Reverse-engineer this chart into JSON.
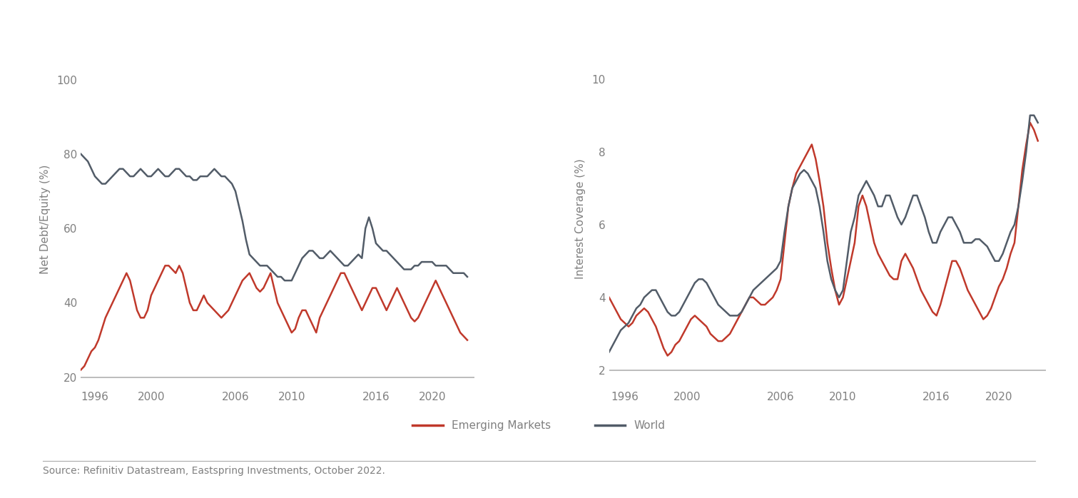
{
  "left_chart": {
    "ylabel": "Net Debt/Equity (%)",
    "yticks": [
      20,
      40,
      60,
      80,
      100
    ],
    "ylim": [
      17,
      108
    ],
    "xticks": [
      1996,
      2000,
      2006,
      2010,
      2016,
      2020
    ],
    "xlim": [
      1995.0,
      2023.0
    ],
    "em": {
      "x": [
        1995.0,
        1995.25,
        1995.5,
        1995.75,
        1996.0,
        1996.25,
        1996.5,
        1996.75,
        1997.0,
        1997.25,
        1997.5,
        1997.75,
        1998.0,
        1998.25,
        1998.5,
        1998.75,
        1999.0,
        1999.25,
        1999.5,
        1999.75,
        2000.0,
        2000.25,
        2000.5,
        2000.75,
        2001.0,
        2001.25,
        2001.5,
        2001.75,
        2002.0,
        2002.25,
        2002.5,
        2002.75,
        2003.0,
        2003.25,
        2003.5,
        2003.75,
        2004.0,
        2004.25,
        2004.5,
        2004.75,
        2005.0,
        2005.25,
        2005.5,
        2005.75,
        2006.0,
        2006.25,
        2006.5,
        2006.75,
        2007.0,
        2007.25,
        2007.5,
        2007.75,
        2008.0,
        2008.25,
        2008.5,
        2008.75,
        2009.0,
        2009.25,
        2009.5,
        2009.75,
        2010.0,
        2010.25,
        2010.5,
        2010.75,
        2011.0,
        2011.25,
        2011.5,
        2011.75,
        2012.0,
        2012.25,
        2012.5,
        2012.75,
        2013.0,
        2013.25,
        2013.5,
        2013.75,
        2014.0,
        2014.25,
        2014.5,
        2014.75,
        2015.0,
        2015.25,
        2015.5,
        2015.75,
        2016.0,
        2016.25,
        2016.5,
        2016.75,
        2017.0,
        2017.25,
        2017.5,
        2017.75,
        2018.0,
        2018.25,
        2018.5,
        2018.75,
        2019.0,
        2019.25,
        2019.5,
        2019.75,
        2020.0,
        2020.25,
        2020.5,
        2020.75,
        2021.0,
        2021.25,
        2021.5,
        2021.75,
        2022.0,
        2022.25,
        2022.5
      ],
      "y": [
        22,
        23,
        25,
        27,
        28,
        30,
        33,
        36,
        38,
        40,
        42,
        44,
        46,
        48,
        46,
        42,
        38,
        36,
        36,
        38,
        42,
        44,
        46,
        48,
        50,
        50,
        49,
        48,
        50,
        48,
        44,
        40,
        38,
        38,
        40,
        42,
        40,
        39,
        38,
        37,
        36,
        37,
        38,
        40,
        42,
        44,
        46,
        47,
        48,
        46,
        44,
        43,
        44,
        46,
        48,
        44,
        40,
        38,
        36,
        34,
        32,
        33,
        36,
        38,
        38,
        36,
        34,
        32,
        36,
        38,
        40,
        42,
        44,
        46,
        48,
        48,
        46,
        44,
        42,
        40,
        38,
        40,
        42,
        44,
        44,
        42,
        40,
        38,
        40,
        42,
        44,
        42,
        40,
        38,
        36,
        35,
        36,
        38,
        40,
        42,
        44,
        46,
        44,
        42,
        40,
        38,
        36,
        34,
        32,
        31,
        30
      ]
    },
    "world": {
      "x": [
        1995.0,
        1995.25,
        1995.5,
        1995.75,
        1996.0,
        1996.25,
        1996.5,
        1996.75,
        1997.0,
        1997.25,
        1997.5,
        1997.75,
        1998.0,
        1998.25,
        1998.5,
        1998.75,
        1999.0,
        1999.25,
        1999.5,
        1999.75,
        2000.0,
        2000.25,
        2000.5,
        2000.75,
        2001.0,
        2001.25,
        2001.5,
        2001.75,
        2002.0,
        2002.25,
        2002.5,
        2002.75,
        2003.0,
        2003.25,
        2003.5,
        2003.75,
        2004.0,
        2004.25,
        2004.5,
        2004.75,
        2005.0,
        2005.25,
        2005.5,
        2005.75,
        2006.0,
        2006.25,
        2006.5,
        2006.75,
        2007.0,
        2007.25,
        2007.5,
        2007.75,
        2008.0,
        2008.25,
        2008.5,
        2008.75,
        2009.0,
        2009.25,
        2009.5,
        2009.75,
        2010.0,
        2010.25,
        2010.5,
        2010.75,
        2011.0,
        2011.25,
        2011.5,
        2011.75,
        2012.0,
        2012.25,
        2012.5,
        2012.75,
        2013.0,
        2013.25,
        2013.5,
        2013.75,
        2014.0,
        2014.25,
        2014.5,
        2014.75,
        2015.0,
        2015.25,
        2015.5,
        2015.75,
        2016.0,
        2016.25,
        2016.5,
        2016.75,
        2017.0,
        2017.25,
        2017.5,
        2017.75,
        2018.0,
        2018.25,
        2018.5,
        2018.75,
        2019.0,
        2019.25,
        2019.5,
        2019.75,
        2020.0,
        2020.25,
        2020.5,
        2020.75,
        2021.0,
        2021.25,
        2021.5,
        2021.75,
        2022.0,
        2022.25,
        2022.5
      ],
      "y": [
        80,
        79,
        78,
        76,
        74,
        73,
        72,
        72,
        73,
        74,
        75,
        76,
        76,
        75,
        74,
        74,
        75,
        76,
        75,
        74,
        74,
        75,
        76,
        75,
        74,
        74,
        75,
        76,
        76,
        75,
        74,
        74,
        73,
        73,
        74,
        74,
        74,
        75,
        76,
        75,
        74,
        74,
        73,
        72,
        70,
        66,
        62,
        57,
        53,
        52,
        51,
        50,
        50,
        50,
        49,
        48,
        47,
        47,
        46,
        46,
        46,
        48,
        50,
        52,
        53,
        54,
        54,
        53,
        52,
        52,
        53,
        54,
        53,
        52,
        51,
        50,
        50,
        51,
        52,
        53,
        52,
        60,
        63,
        60,
        56,
        55,
        54,
        54,
        53,
        52,
        51,
        50,
        49,
        49,
        49,
        50,
        50,
        51,
        51,
        51,
        51,
        50,
        50,
        50,
        50,
        49,
        48,
        48,
        48,
        48,
        47
      ]
    }
  },
  "right_chart": {
    "ylabel": "Interest Coverage (%)",
    "yticks": [
      2,
      4,
      6,
      8,
      10
    ],
    "ylim": [
      1.5,
      10.8
    ],
    "xticks": [
      1996,
      2000,
      2006,
      2010,
      2016,
      2020
    ],
    "xlim": [
      1995.0,
      2023.0
    ],
    "em": {
      "x": [
        1995.0,
        1995.25,
        1995.5,
        1995.75,
        1996.0,
        1996.25,
        1996.5,
        1996.75,
        1997.0,
        1997.25,
        1997.5,
        1997.75,
        1998.0,
        1998.25,
        1998.5,
        1998.75,
        1999.0,
        1999.25,
        1999.5,
        1999.75,
        2000.0,
        2000.25,
        2000.5,
        2000.75,
        2001.0,
        2001.25,
        2001.5,
        2001.75,
        2002.0,
        2002.25,
        2002.5,
        2002.75,
        2003.0,
        2003.25,
        2003.5,
        2003.75,
        2004.0,
        2004.25,
        2004.5,
        2004.75,
        2005.0,
        2005.25,
        2005.5,
        2005.75,
        2006.0,
        2006.25,
        2006.5,
        2006.75,
        2007.0,
        2007.25,
        2007.5,
        2007.75,
        2008.0,
        2008.25,
        2008.5,
        2008.75,
        2009.0,
        2009.25,
        2009.5,
        2009.75,
        2010.0,
        2010.25,
        2010.5,
        2010.75,
        2011.0,
        2011.25,
        2011.5,
        2011.75,
        2012.0,
        2012.25,
        2012.5,
        2012.75,
        2013.0,
        2013.25,
        2013.5,
        2013.75,
        2014.0,
        2014.25,
        2014.5,
        2014.75,
        2015.0,
        2015.25,
        2015.5,
        2015.75,
        2016.0,
        2016.25,
        2016.5,
        2016.75,
        2017.0,
        2017.25,
        2017.5,
        2017.75,
        2018.0,
        2018.25,
        2018.5,
        2018.75,
        2019.0,
        2019.25,
        2019.5,
        2019.75,
        2020.0,
        2020.25,
        2020.5,
        2020.75,
        2021.0,
        2021.25,
        2021.5,
        2021.75,
        2022.0,
        2022.25,
        2022.5
      ],
      "y": [
        4.0,
        3.8,
        3.6,
        3.4,
        3.3,
        3.2,
        3.3,
        3.5,
        3.6,
        3.7,
        3.6,
        3.4,
        3.2,
        2.9,
        2.6,
        2.4,
        2.5,
        2.7,
        2.8,
        3.0,
        3.2,
        3.4,
        3.5,
        3.4,
        3.3,
        3.2,
        3.0,
        2.9,
        2.8,
        2.8,
        2.9,
        3.0,
        3.2,
        3.4,
        3.6,
        3.8,
        4.0,
        4.0,
        3.9,
        3.8,
        3.8,
        3.9,
        4.0,
        4.2,
        4.5,
        5.5,
        6.5,
        7.0,
        7.4,
        7.6,
        7.8,
        8.0,
        8.2,
        7.8,
        7.2,
        6.5,
        5.5,
        4.8,
        4.2,
        3.8,
        4.0,
        4.5,
        5.0,
        5.5,
        6.5,
        6.8,
        6.5,
        6.0,
        5.5,
        5.2,
        5.0,
        4.8,
        4.6,
        4.5,
        4.5,
        5.0,
        5.2,
        5.0,
        4.8,
        4.5,
        4.2,
        4.0,
        3.8,
        3.6,
        3.5,
        3.8,
        4.2,
        4.6,
        5.0,
        5.0,
        4.8,
        4.5,
        4.2,
        4.0,
        3.8,
        3.6,
        3.4,
        3.5,
        3.7,
        4.0,
        4.3,
        4.5,
        4.8,
        5.2,
        5.5,
        6.5,
        7.5,
        8.2,
        8.8,
        8.6,
        8.3
      ]
    },
    "world": {
      "x": [
        1995.0,
        1995.25,
        1995.5,
        1995.75,
        1996.0,
        1996.25,
        1996.5,
        1996.75,
        1997.0,
        1997.25,
        1997.5,
        1997.75,
        1998.0,
        1998.25,
        1998.5,
        1998.75,
        1999.0,
        1999.25,
        1999.5,
        1999.75,
        2000.0,
        2000.25,
        2000.5,
        2000.75,
        2001.0,
        2001.25,
        2001.5,
        2001.75,
        2002.0,
        2002.25,
        2002.5,
        2002.75,
        2003.0,
        2003.25,
        2003.5,
        2003.75,
        2004.0,
        2004.25,
        2004.5,
        2004.75,
        2005.0,
        2005.25,
        2005.5,
        2005.75,
        2006.0,
        2006.25,
        2006.5,
        2006.75,
        2007.0,
        2007.25,
        2007.5,
        2007.75,
        2008.0,
        2008.25,
        2008.5,
        2008.75,
        2009.0,
        2009.25,
        2009.5,
        2009.75,
        2010.0,
        2010.25,
        2010.5,
        2010.75,
        2011.0,
        2011.25,
        2011.5,
        2011.75,
        2012.0,
        2012.25,
        2012.5,
        2012.75,
        2013.0,
        2013.25,
        2013.5,
        2013.75,
        2014.0,
        2014.25,
        2014.5,
        2014.75,
        2015.0,
        2015.25,
        2015.5,
        2015.75,
        2016.0,
        2016.25,
        2016.5,
        2016.75,
        2017.0,
        2017.25,
        2017.5,
        2017.75,
        2018.0,
        2018.25,
        2018.5,
        2018.75,
        2019.0,
        2019.25,
        2019.5,
        2019.75,
        2020.0,
        2020.25,
        2020.5,
        2020.75,
        2021.0,
        2021.25,
        2021.5,
        2021.75,
        2022.0,
        2022.25,
        2022.5
      ],
      "y": [
        2.5,
        2.7,
        2.9,
        3.1,
        3.2,
        3.3,
        3.5,
        3.7,
        3.8,
        4.0,
        4.1,
        4.2,
        4.2,
        4.0,
        3.8,
        3.6,
        3.5,
        3.5,
        3.6,
        3.8,
        4.0,
        4.2,
        4.4,
        4.5,
        4.5,
        4.4,
        4.2,
        4.0,
        3.8,
        3.7,
        3.6,
        3.5,
        3.5,
        3.5,
        3.6,
        3.8,
        4.0,
        4.2,
        4.3,
        4.4,
        4.5,
        4.6,
        4.7,
        4.8,
        5.0,
        5.8,
        6.5,
        7.0,
        7.2,
        7.4,
        7.5,
        7.4,
        7.2,
        7.0,
        6.5,
        5.8,
        5.0,
        4.5,
        4.2,
        4.0,
        4.2,
        5.0,
        5.8,
        6.2,
        6.8,
        7.0,
        7.2,
        7.0,
        6.8,
        6.5,
        6.5,
        6.8,
        6.8,
        6.5,
        6.2,
        6.0,
        6.2,
        6.5,
        6.8,
        6.8,
        6.5,
        6.2,
        5.8,
        5.5,
        5.5,
        5.8,
        6.0,
        6.2,
        6.2,
        6.0,
        5.8,
        5.5,
        5.5,
        5.5,
        5.6,
        5.6,
        5.5,
        5.4,
        5.2,
        5.0,
        5.0,
        5.2,
        5.5,
        5.8,
        6.0,
        6.5,
        7.2,
        8.0,
        9.0,
        9.0,
        8.8
      ]
    }
  },
  "colors": {
    "em": "#c0392b",
    "world": "#525c68",
    "axis_line": "#b0b0b0",
    "tick_label": "#808080",
    "ylabel_color": "#808080",
    "legend_text": "#808080",
    "source_line": "#aaaaaa",
    "source_text": "#808080"
  },
  "legend": {
    "em_label": "Emerging Markets",
    "world_label": "World"
  },
  "source_text": "Source: Refinitiv Datastream, Eastspring Investments, October 2022.",
  "line_width": 1.8,
  "tick_fontsize": 11,
  "ylabel_fontsize": 11,
  "legend_fontsize": 11,
  "source_fontsize": 10
}
